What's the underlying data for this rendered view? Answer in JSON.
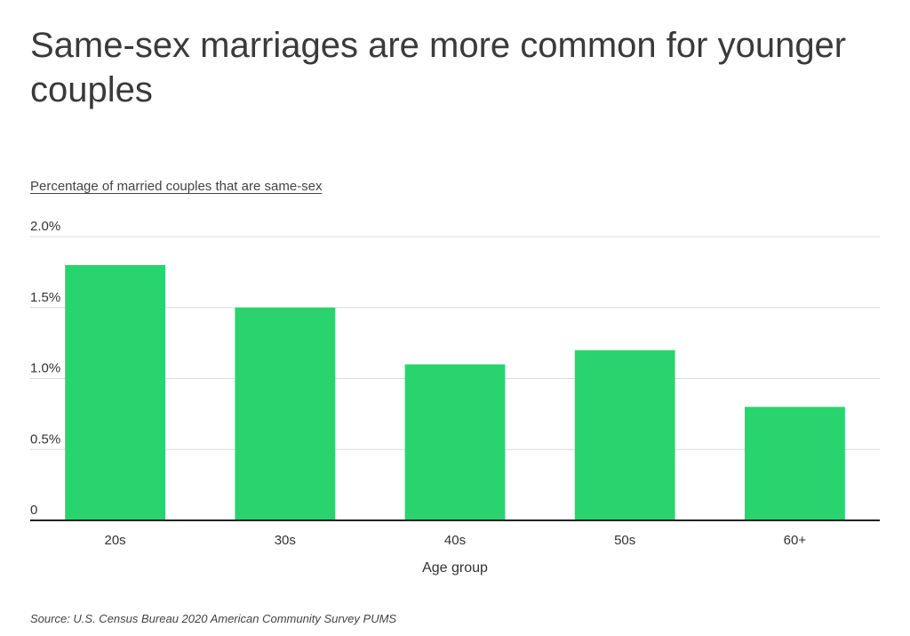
{
  "title": "Same-sex marriages are more common for younger couples",
  "subtitle": "Percentage of married couples that are same-sex",
  "source": "Source:  U.S. Census Bureau 2020 American Community Survey PUMS",
  "colors": {
    "bar": "#29d46e",
    "grid": "#d9d9d9",
    "axis": "#222222",
    "text": "#333333"
  },
  "chart_data": {
    "type": "bar",
    "title": "Same-sex marriages are more common for younger couples",
    "subtitle": "Percentage of married couples that are same-sex",
    "xlabel": "Age group",
    "ylabel": "Percentage of married couples that are same-sex",
    "categories": [
      "20s",
      "30s",
      "40s",
      "50s",
      "60+"
    ],
    "values": [
      1.8,
      1.5,
      1.1,
      1.2,
      0.8
    ],
    "ylim": [
      0,
      2.0
    ],
    "yticks": [
      0,
      0.5,
      1.0,
      1.5,
      2.0
    ],
    "ytick_labels": [
      "0",
      "0.5%",
      "1.0%",
      "1.5%",
      "2.0%"
    ],
    "grid": true,
    "legend": "none"
  }
}
